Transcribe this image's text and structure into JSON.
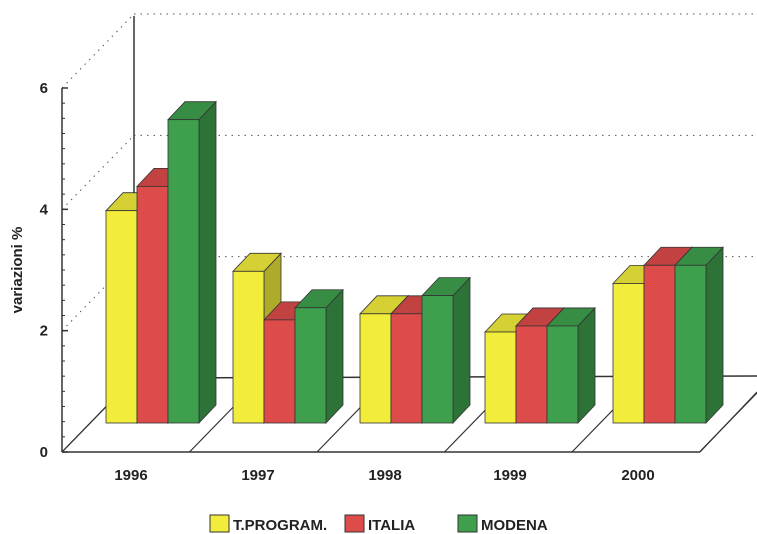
{
  "chart_data": {
    "type": "bar",
    "title": "",
    "xlabel": "",
    "ylabel": "variazioni %",
    "ylim": [
      0,
      6
    ],
    "yticks": [
      "0",
      "2",
      "4",
      "6"
    ],
    "grid": "dotted horizontal at 2, 4, 6",
    "legend_position": "bottom",
    "categories": [
      "1996",
      "1997",
      "1998",
      "1999",
      "2000"
    ],
    "series": [
      {
        "name": "T.PROGRAM.",
        "color": "#f2ec3a",
        "values": [
          3.5,
          2.5,
          1.8,
          1.5,
          2.3
        ]
      },
      {
        "name": "ITALIA",
        "color": "#dd4b4b",
        "values": [
          3.9,
          1.7,
          1.8,
          1.6,
          2.6
        ]
      },
      {
        "name": "MODENA",
        "color": "#3ea04c",
        "values": [
          5.0,
          1.9,
          2.1,
          1.6,
          2.6
        ]
      }
    ]
  }
}
